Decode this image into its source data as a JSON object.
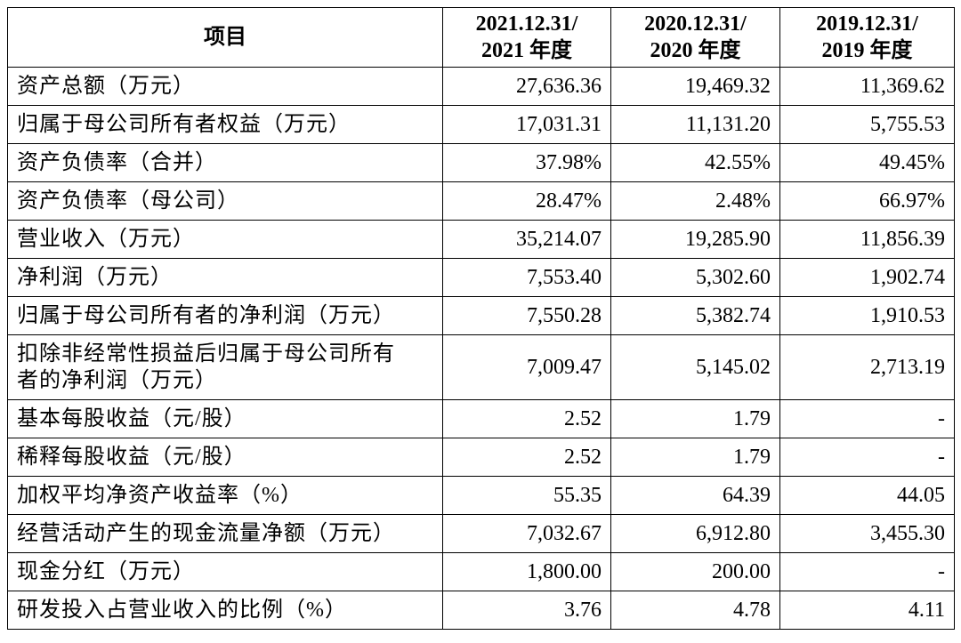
{
  "table": {
    "header": [
      "项目",
      [
        "2021.12.31/",
        "2021 年度"
      ],
      [
        "2020.12.31/",
        "2020 年度"
      ],
      [
        "2019.12.31/",
        "2019 年度"
      ]
    ],
    "rows": [
      [
        "资产总额（万元）",
        "27,636.36",
        "19,469.32",
        "11,369.62"
      ],
      [
        "归属于母公司所有者权益（万元）",
        "17,031.31",
        "11,131.20",
        "5,755.53"
      ],
      [
        "资产负债率（合并）",
        "37.98%",
        "42.55%",
        "49.45%"
      ],
      [
        "资产负债率（母公司）",
        "28.47%",
        "2.48%",
        "66.97%"
      ],
      [
        "营业收入（万元）",
        "35,214.07",
        "19,285.90",
        "11,856.39"
      ],
      [
        "净利润（万元）",
        "7,553.40",
        "5,302.60",
        "1,902.74"
      ],
      [
        "归属于母公司所有者的净利润（万元）",
        "7,550.28",
        "5,382.74",
        "1,910.53"
      ],
      [
        "扣除非经常性损益后归属于母公司所有者的净利润（万元）",
        "7,009.47",
        "5,145.02",
        "2,713.19"
      ],
      [
        "基本每股收益（元/股）",
        "2.52",
        "1.79",
        "-"
      ],
      [
        "稀释每股收益（元/股）",
        "2.52",
        "1.79",
        "-"
      ],
      [
        "加权平均净资产收益率（%）",
        "55.35",
        "64.39",
        "44.05"
      ],
      [
        "经营活动产生的现金流量净额（万元）",
        "7,032.67",
        "6,912.80",
        "3,455.30"
      ],
      [
        "现金分红（万元）",
        "1,800.00",
        "200.00",
        "-"
      ],
      [
        "研发投入占营业收入的比例（%）",
        "3.76",
        "4.78",
        "4.11"
      ]
    ]
  }
}
